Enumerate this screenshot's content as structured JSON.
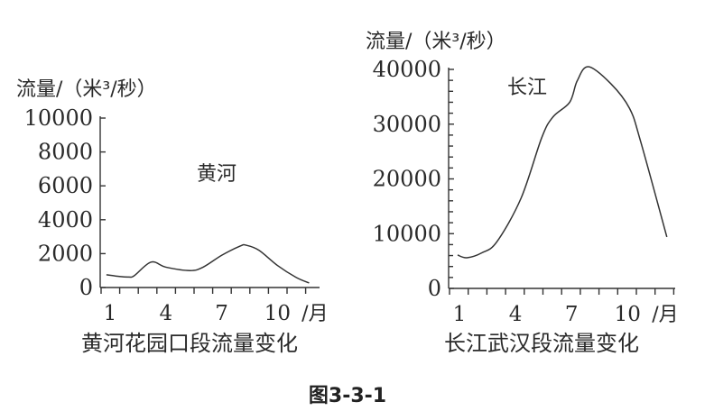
{
  "figure_title": "图3-3-1",
  "chart_data": [
    {
      "type": "line",
      "title": "黄河花园口段流量变化",
      "series_label": "黄河",
      "ylabel": "流量/（米³/秒）",
      "xlabel_unit": "/月",
      "xticks": [
        1,
        4,
        7,
        10
      ],
      "xlim": [
        0.4,
        12.2
      ],
      "yticks": [
        0,
        2000,
        4000,
        6000,
        8000,
        10000
      ],
      "ylim": [
        0,
        10000
      ],
      "grid": false,
      "x": [
        0.8,
        1.5,
        2.0,
        2.3,
        3.2,
        4.0,
        5.3,
        6.0,
        7.0,
        8.0,
        8.3,
        9.0,
        10.0,
        11.0,
        11.7
      ],
      "values": [
        750,
        650,
        620,
        700,
        1500,
        1200,
        1000,
        1200,
        1900,
        2450,
        2500,
        2200,
        1300,
        600,
        270
      ]
    },
    {
      "type": "line",
      "title": "长江武汉段流量变化",
      "series_label": "长江",
      "ylabel": "流量/（米³/秒）",
      "xlabel_unit": "/月",
      "xticks": [
        1,
        4,
        7,
        10
      ],
      "xlim": [
        0.4,
        12.5
      ],
      "yticks": [
        0,
        10000,
        20000,
        30000,
        40000
      ],
      "minor_step": 2000,
      "ylim": [
        0,
        40000
      ],
      "grid": false,
      "x": [
        0.9,
        1.4,
        2.2,
        3.0,
        4.3,
        5.4,
        6.0,
        6.9,
        7.3,
        7.9,
        9.1,
        10.1,
        10.7,
        12.1
      ],
      "values": [
        6100,
        5600,
        6500,
        8500,
        16500,
        27500,
        31300,
        34000,
        37900,
        40500,
        37400,
        32900,
        26800,
        9400
      ]
    }
  ]
}
